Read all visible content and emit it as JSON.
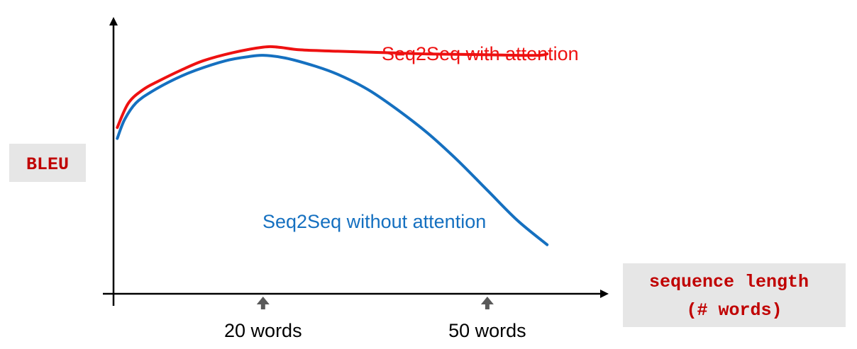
{
  "chart_data": {
    "type": "line",
    "ylabel": "BLEU",
    "xlabel": [
      "sequence length",
      "(# words)"
    ],
    "x_markers": [
      {
        "x": 20,
        "label": "20 words"
      },
      {
        "x": 50,
        "label": "50 words"
      }
    ],
    "x_unit": "words",
    "xlim": [
      0,
      65
    ],
    "ylim": [
      0,
      1
    ],
    "y_ticks_shown": false,
    "grid": false,
    "series": [
      {
        "name": "Seq2Seq with attention",
        "color": "#ee1111",
        "x": [
          0.5,
          2,
          4,
          6,
          9,
          12,
          16,
          20,
          22,
          25,
          30,
          36,
          42,
          48,
          54,
          57,
          58
        ],
        "y": [
          0.61,
          0.7,
          0.75,
          0.78,
          0.82,
          0.855,
          0.885,
          0.905,
          0.905,
          0.895,
          0.89,
          0.885,
          0.88,
          0.878,
          0.875,
          0.875,
          0.88
        ]
      },
      {
        "name": "Seq2Seq without attention",
        "color": "#1570c0",
        "x": [
          0.5,
          1.5,
          3,
          5,
          8,
          11,
          15,
          18,
          20,
          23,
          27,
          30,
          34,
          38,
          42,
          46,
          50,
          54,
          58
        ],
        "y": [
          0.57,
          0.64,
          0.7,
          0.74,
          0.785,
          0.82,
          0.855,
          0.87,
          0.875,
          0.865,
          0.835,
          0.805,
          0.75,
          0.675,
          0.59,
          0.49,
          0.38,
          0.27,
          0.18
        ]
      }
    ]
  }
}
